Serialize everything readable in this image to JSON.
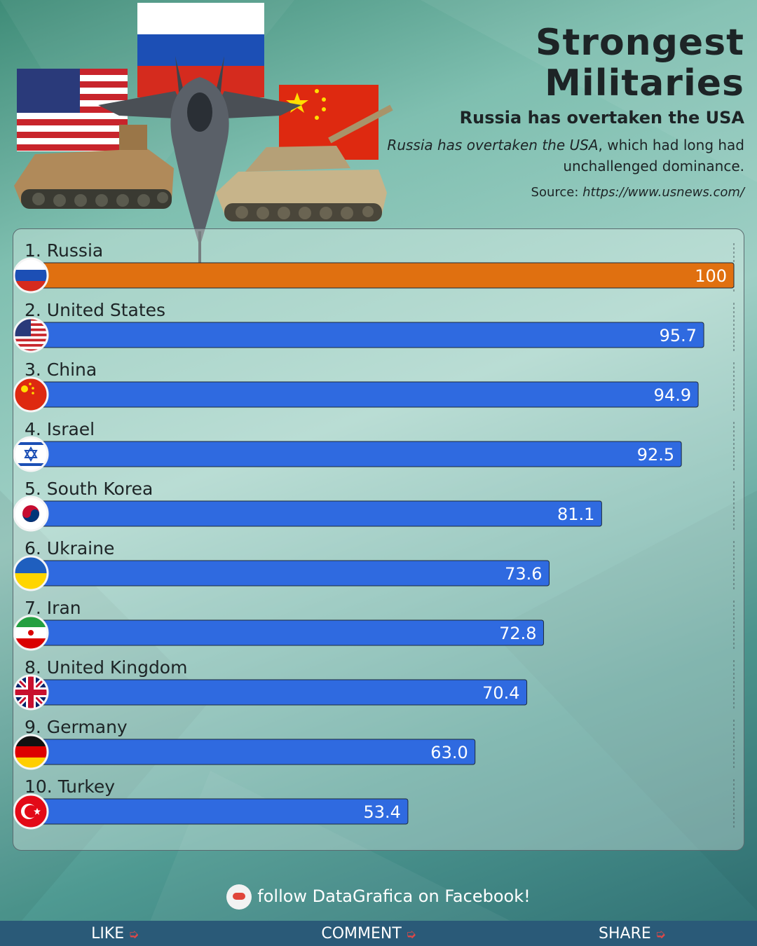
{
  "header": {
    "title_line1": "Strongest",
    "title_line2": "Militaries",
    "subtitle": "Russia has overtaken the USA",
    "desc_em": "Russia has overtaken the USA",
    "desc_rest": ", which had long had unchallenged dominance.",
    "source_label": "Source: ",
    "source_url": "https://www.usnews.com/"
  },
  "chart_data": {
    "type": "bar",
    "orientation": "horizontal",
    "categories": [
      "1. Russia",
      "2. United States",
      "3. China",
      "4. Israel",
      "5. South Korea",
      "6. Ukraine",
      "7. Iran",
      "8. United Kingdom",
      "9. Germany",
      "10. Turkey"
    ],
    "values": [
      100,
      95.7,
      94.9,
      92.5,
      81.1,
      73.6,
      72.8,
      70.4,
      63.0,
      53.4
    ],
    "value_labels": [
      "100",
      "95.7",
      "94.9",
      "92.5",
      "81.1",
      "73.6",
      "72.8",
      "70.4",
      "63.0",
      "53.4"
    ],
    "flags": [
      "russia-flag-icon",
      "usa-flag-icon",
      "china-flag-icon",
      "israel-flag-icon",
      "south-korea-flag-icon",
      "ukraine-flag-icon",
      "iran-flag-icon",
      "uk-flag-icon",
      "germany-flag-icon",
      "turkey-flag-icon"
    ],
    "xlim": [
      0,
      100
    ],
    "highlight_color": "#e07010",
    "bar_color": "#2f6ae0",
    "grid": false
  },
  "footer": {
    "follow_text": "follow DataGrafica on Facebook!",
    "like": "LIKE",
    "comment": "COMMENT",
    "share": "SHARE"
  }
}
